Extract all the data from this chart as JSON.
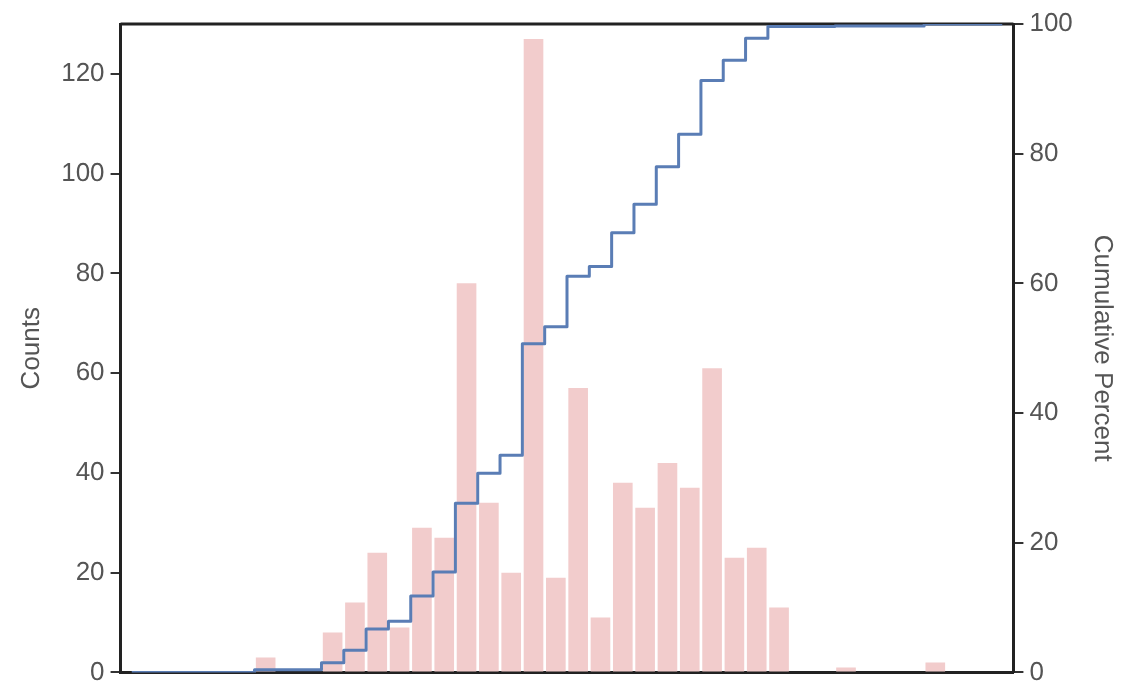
{
  "chart_data": {
    "type": "bar",
    "ylabel": "Counts",
    "y2label": "Cumulative Percent",
    "categories": [
      null,
      null,
      null,
      null,
      null,
      null,
      null,
      null,
      null,
      null,
      null,
      null,
      null,
      null,
      null,
      null,
      null,
      null,
      null,
      null,
      null,
      null,
      null,
      null,
      null,
      null,
      null,
      null,
      null,
      null,
      null,
      null,
      null,
      null,
      null,
      null,
      null,
      null,
      null,
      null
    ],
    "series": [
      {
        "color": "#f2cccc",
        "values": [
          0,
          0,
          0,
          0,
          0,
          0,
          3,
          0,
          0,
          8,
          14,
          24,
          9,
          29,
          27,
          78,
          34,
          20,
          127,
          19,
          57,
          11,
          38,
          33,
          42,
          37,
          61,
          23,
          25,
          13,
          0,
          0,
          1,
          0,
          0,
          0,
          2,
          0,
          0,
          0
        ]
      },
      {
        "type": "step",
        "axis": "y2",
        "color": "#5a7db5",
        "values": [
          0,
          0,
          0,
          0,
          0,
          0,
          0.4,
          0.4,
          0.4,
          1.5,
          3.4,
          6.7,
          7.9,
          11.8,
          15.5,
          26.1,
          30.7,
          33.5,
          50.7,
          53.3,
          61.1,
          62.6,
          67.8,
          72.2,
          78,
          83,
          91.3,
          94.4,
          97.8,
          99.6,
          99.6,
          99.6,
          99.7,
          99.7,
          99.7,
          99.7,
          100,
          100,
          100,
          100
        ]
      }
    ],
    "ylim": [
      0,
      130
    ],
    "yticks": [
      0,
      20,
      40,
      60,
      80,
      100,
      120
    ],
    "y2lim": [
      0,
      100
    ],
    "y2ticks": [
      0,
      20,
      40,
      60,
      80,
      100
    ],
    "grid": false,
    "legend": false
  }
}
